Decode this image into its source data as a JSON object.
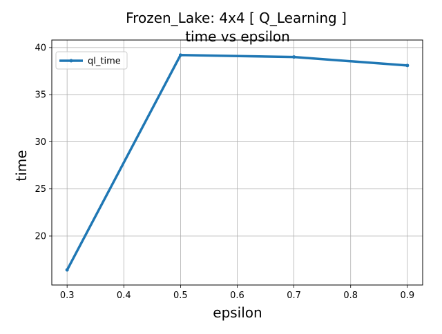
{
  "chart_data": {
    "type": "line",
    "title": "Frozen_Lake: 4x4 [ Q_Learning ]",
    "subtitle": "time vs epsilon",
    "xlabel": "epsilon",
    "ylabel": "time",
    "xlim": [
      0.273,
      0.927
    ],
    "ylim": [
      14.8,
      40.8
    ],
    "x_ticks": [
      0.3,
      0.4,
      0.5,
      0.6,
      0.7,
      0.8,
      0.9
    ],
    "x_tick_labels": [
      "0.3",
      "0.4",
      "0.5",
      "0.6",
      "0.7",
      "0.8",
      "0.9"
    ],
    "y_ticks": [
      20,
      25,
      30,
      35,
      40
    ],
    "y_tick_labels": [
      "20",
      "25",
      "30",
      "35",
      "40"
    ],
    "grid": true,
    "legend_position": "top-left",
    "series": [
      {
        "name": "ql_time",
        "color": "#1f77b4",
        "x": [
          0.3,
          0.5,
          0.7,
          0.9
        ],
        "y": [
          16.4,
          39.2,
          39.0,
          38.1
        ]
      }
    ]
  }
}
